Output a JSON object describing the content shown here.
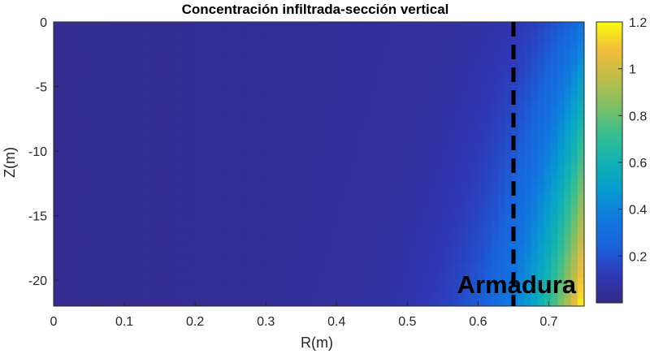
{
  "chart_data": {
    "type": "heatmap",
    "title": "Concentración infiltrada-sección vertical",
    "xlabel": "R(m)",
    "ylabel": "Z(m)",
    "xlim": [
      0,
      0.75
    ],
    "ylim": [
      -22,
      0
    ],
    "x_ticks": [
      0,
      0.1,
      0.2,
      0.3,
      0.4,
      0.5,
      0.6,
      0.7
    ],
    "x_tick_labels": [
      "0",
      "0.1",
      "0.2",
      "0.3",
      "0.4",
      "0.5",
      "0.6",
      "0.7"
    ],
    "y_ticks": [
      0,
      -5,
      -10,
      -15,
      -20
    ],
    "y_tick_labels": [
      "0",
      "-5",
      "-10",
      "-15",
      "-20"
    ],
    "colorbar": {
      "colormap": "parula",
      "range": [
        0,
        1.2
      ],
      "ticks": [
        0.2,
        0.4,
        0.6,
        0.8,
        1,
        1.2
      ],
      "tick_labels": [
        "0.2",
        "0.4",
        "0.6",
        "0.8",
        "1",
        "1.2"
      ]
    },
    "field": {
      "description_points": [
        {
          "r": 0.0,
          "z": 0,
          "value": 0.02
        },
        {
          "r": 0.5,
          "z": 0,
          "value": 0.06
        },
        {
          "r": 0.65,
          "z": 0,
          "value": 0.15
        },
        {
          "r": 0.75,
          "z": 0,
          "value": 0.3
        },
        {
          "r": 0.5,
          "z": -22,
          "value": 0.12
        },
        {
          "r": 0.65,
          "z": -22,
          "value": 0.45
        },
        {
          "r": 0.7,
          "z": -22,
          "value": 0.8
        },
        {
          "r": 0.75,
          "z": -22,
          "value": 1.2
        }
      ]
    },
    "reference_line": {
      "x": 0.65,
      "style": "dashed",
      "color": "#000000",
      "label": "Armadura"
    }
  }
}
